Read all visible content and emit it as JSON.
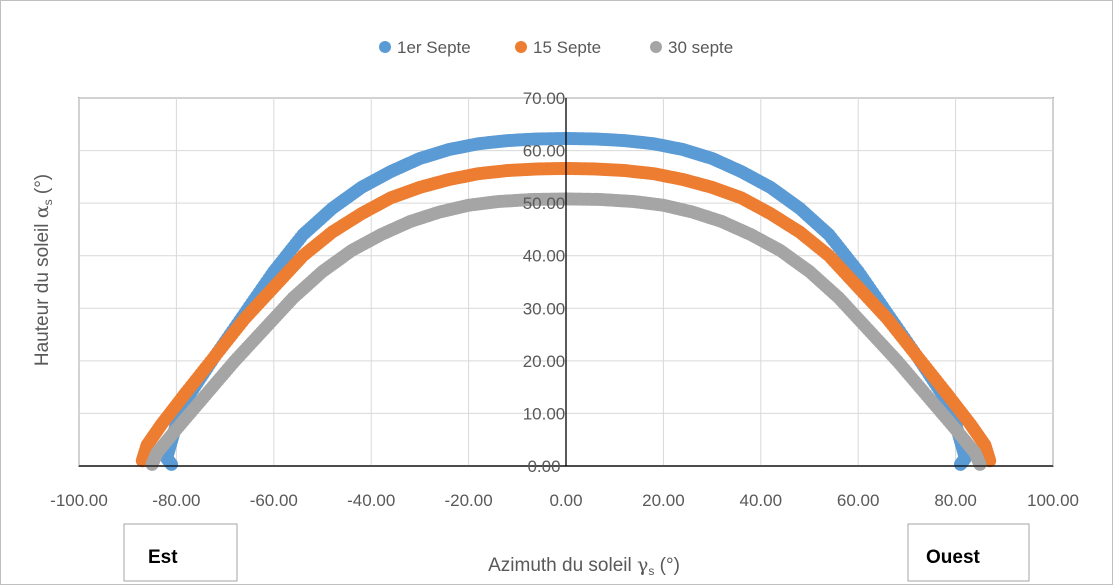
{
  "chart_data": {
    "type": "scatter",
    "xlabel": "Azimuth du soleil",
    "xlabel_symbol": "γ",
    "xlabel_sub": "s",
    "xlabel_unit": " (°)",
    "ylabel": "Hauteur  du soleil ",
    "ylabel_symbol": "α",
    "ylabel_sub": "s",
    "ylabel_unit": " (°)",
    "xlim": [
      -100,
      100
    ],
    "ylim": [
      0,
      70
    ],
    "x_ticks": [
      "-100.00",
      "-80.00",
      "-60.00",
      "-40.00",
      "-20.00",
      "0.00",
      "20.00",
      "40.00",
      "60.00",
      "80.00",
      "100.00"
    ],
    "y_ticks": [
      "0.00",
      "10.00",
      "20.00",
      "30.00",
      "40.00",
      "50.00",
      "60.00",
      "70.00"
    ],
    "grid": true,
    "legend_position": "top",
    "series": [
      {
        "name": "1er Septe",
        "color": "#5b9bd5",
        "points": [
          [
            -81,
            0.3
          ],
          [
            -82,
            1.5
          ],
          [
            -80,
            8
          ],
          [
            -77,
            14
          ],
          [
            -72,
            21
          ],
          [
            -66,
            29
          ],
          [
            -60,
            37
          ],
          [
            -54,
            44
          ],
          [
            -48,
            49
          ],
          [
            -42,
            53
          ],
          [
            -36,
            56
          ],
          [
            -30,
            58.5
          ],
          [
            -24,
            60.2
          ],
          [
            -18,
            61.3
          ],
          [
            -12,
            61.9
          ],
          [
            -6,
            62.2
          ],
          [
            0,
            62.3
          ],
          [
            6,
            62.2
          ],
          [
            12,
            61.9
          ],
          [
            18,
            61.3
          ],
          [
            24,
            60.2
          ],
          [
            30,
            58.5
          ],
          [
            36,
            56
          ],
          [
            42,
            53
          ],
          [
            48,
            49
          ],
          [
            54,
            44
          ],
          [
            60,
            37
          ],
          [
            66,
            29
          ],
          [
            72,
            21
          ],
          [
            77,
            14
          ],
          [
            80,
            8
          ],
          [
            82,
            1.5
          ],
          [
            81,
            0.3
          ]
        ]
      },
      {
        "name": "15 Septe",
        "color": "#ed7d31",
        "points": [
          [
            -87,
            1
          ],
          [
            -86,
            4
          ],
          [
            -83,
            8
          ],
          [
            -78,
            14
          ],
          [
            -72,
            21
          ],
          [
            -66,
            28
          ],
          [
            -60,
            34
          ],
          [
            -54,
            40
          ],
          [
            -48,
            44.5
          ],
          [
            -42,
            48
          ],
          [
            -36,
            51
          ],
          [
            -30,
            53
          ],
          [
            -24,
            54.5
          ],
          [
            -18,
            55.6
          ],
          [
            -12,
            56.2
          ],
          [
            -6,
            56.5
          ],
          [
            0,
            56.6
          ],
          [
            6,
            56.5
          ],
          [
            12,
            56.2
          ],
          [
            18,
            55.6
          ],
          [
            24,
            54.5
          ],
          [
            30,
            53
          ],
          [
            36,
            51
          ],
          [
            42,
            48
          ],
          [
            48,
            44.5
          ],
          [
            54,
            40
          ],
          [
            60,
            34
          ],
          [
            66,
            28
          ],
          [
            72,
            21
          ],
          [
            78,
            14
          ],
          [
            83,
            8
          ],
          [
            86,
            4
          ],
          [
            87,
            1
          ]
        ]
      },
      {
        "name": "30 septe",
        "color": "#a5a5a5",
        "points": [
          [
            -85,
            0.3
          ],
          [
            -84,
            2.5
          ],
          [
            -80,
            7
          ],
          [
            -74,
            13.5
          ],
          [
            -68,
            20
          ],
          [
            -62,
            26
          ],
          [
            -56,
            32
          ],
          [
            -50,
            37
          ],
          [
            -44,
            41
          ],
          [
            -38,
            44
          ],
          [
            -32,
            46.5
          ],
          [
            -26,
            48.3
          ],
          [
            -20,
            49.6
          ],
          [
            -14,
            50.3
          ],
          [
            -7,
            50.7
          ],
          [
            0,
            50.8
          ],
          [
            7,
            50.7
          ],
          [
            14,
            50.3
          ],
          [
            20,
            49.6
          ],
          [
            26,
            48.3
          ],
          [
            32,
            46.5
          ],
          [
            38,
            44
          ],
          [
            44,
            41
          ],
          [
            50,
            37
          ],
          [
            56,
            32
          ],
          [
            62,
            26
          ],
          [
            68,
            20
          ],
          [
            74,
            13.5
          ],
          [
            80,
            7
          ],
          [
            84,
            2.5
          ],
          [
            85,
            0.3
          ]
        ]
      }
    ],
    "annotations": {
      "left_box": "Est",
      "right_box": "Ouest"
    }
  }
}
